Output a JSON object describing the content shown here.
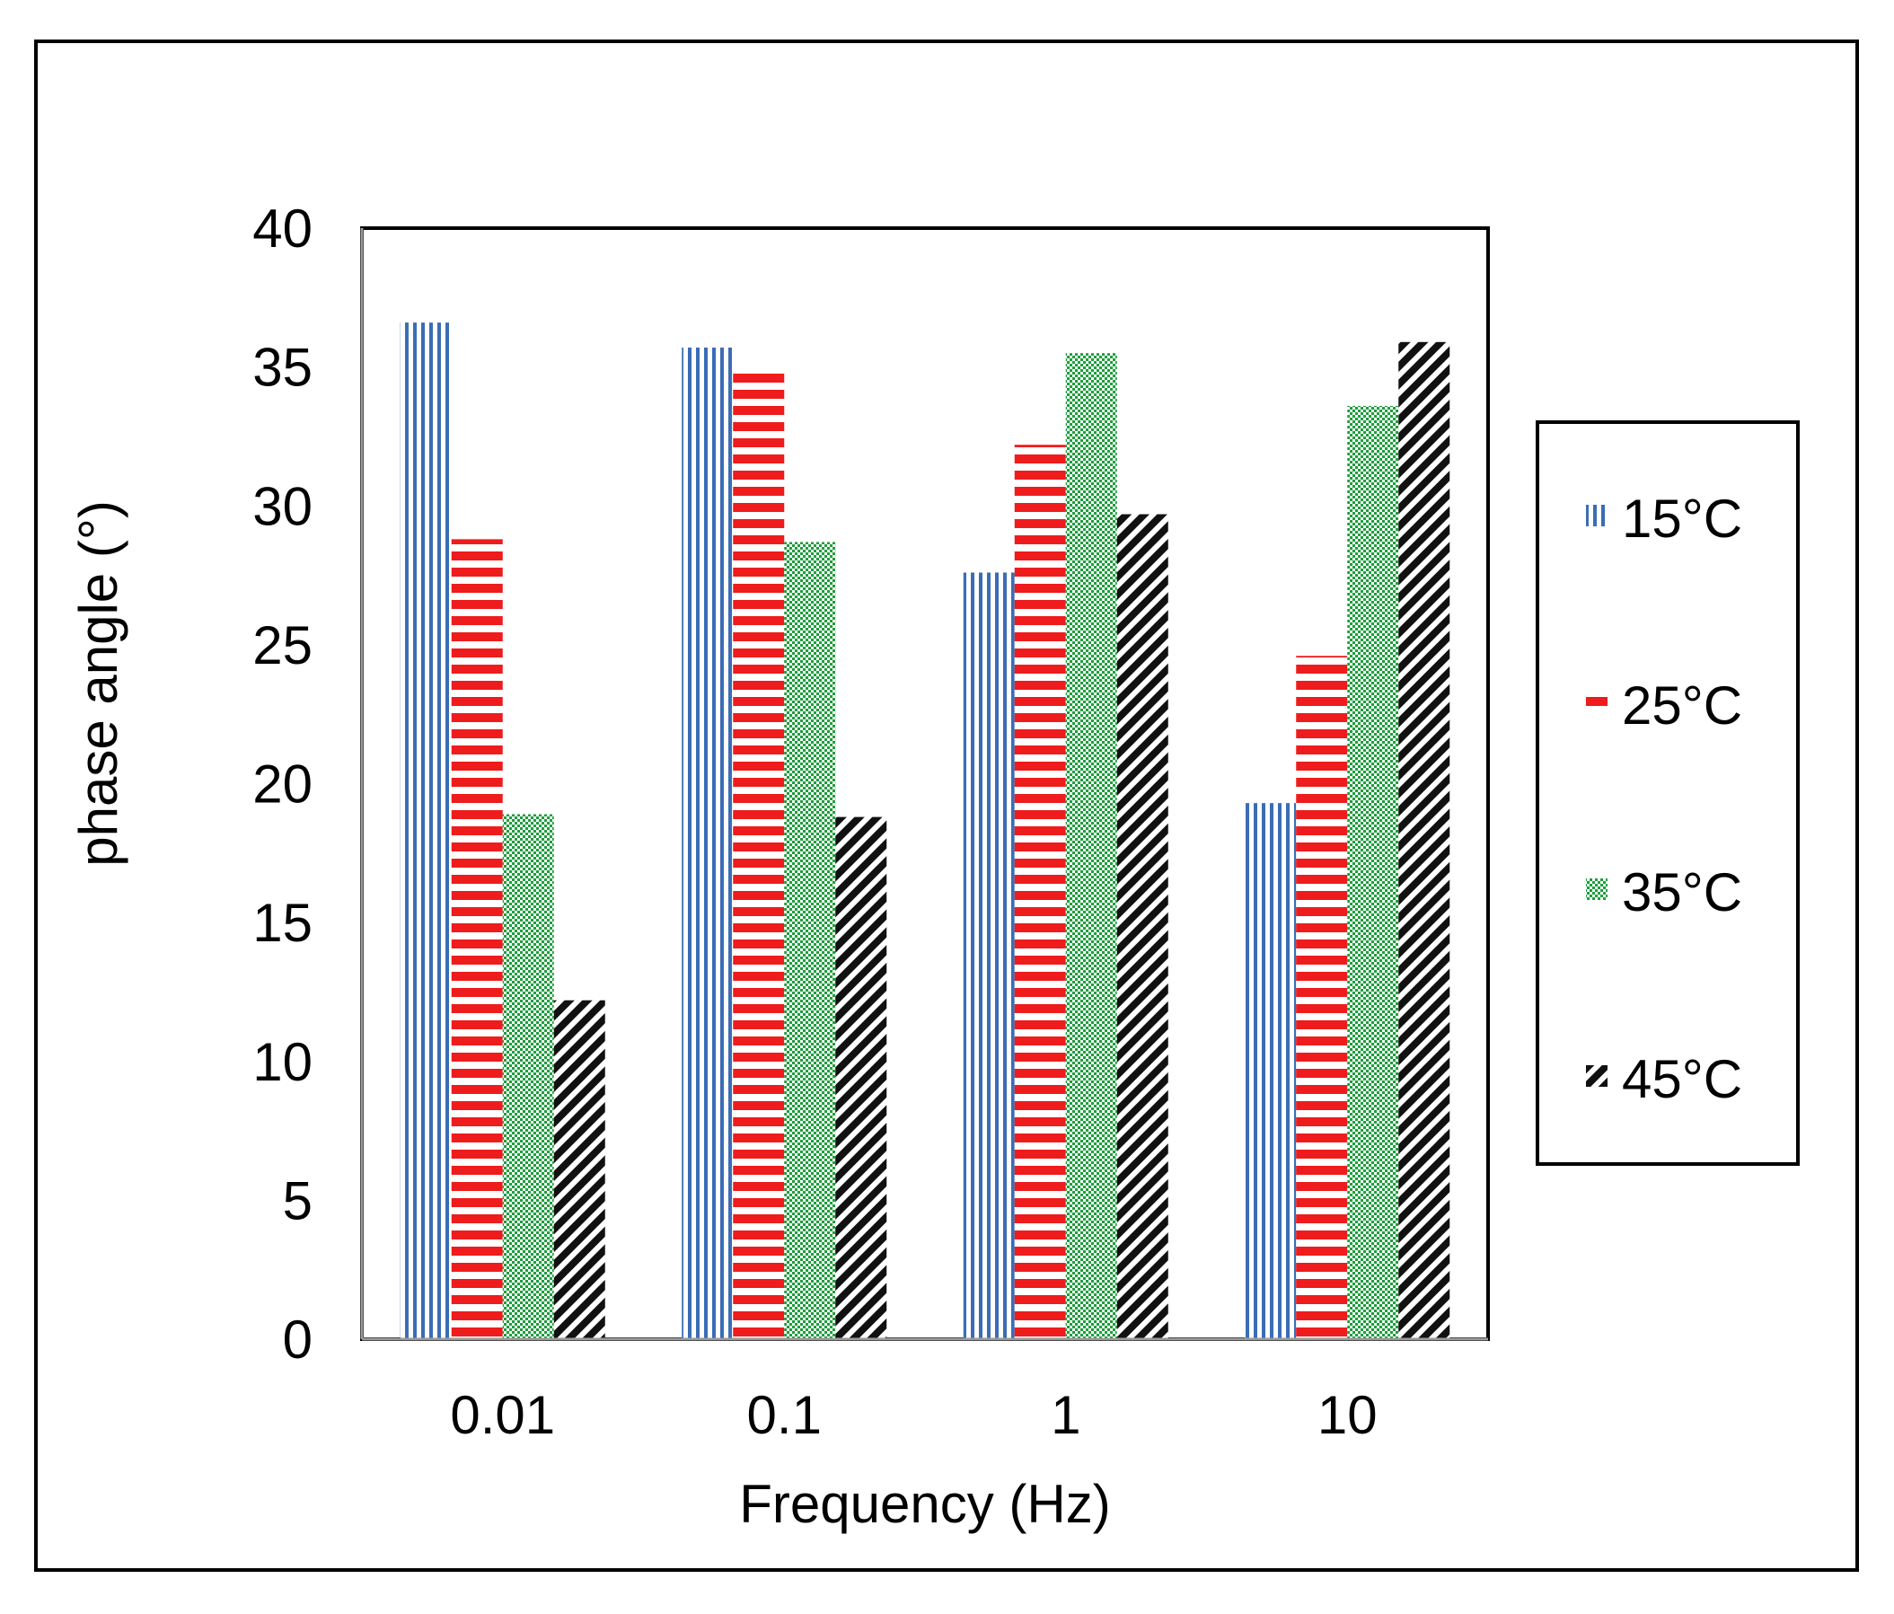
{
  "chart_data": {
    "type": "bar",
    "title": "",
    "xlabel": "Frequency (Hz)",
    "ylabel": "phase angle (°)",
    "categories": [
      "0.01",
      "0.1",
      "1",
      "10"
    ],
    "ylim": [
      0,
      40
    ],
    "yticks": [
      0,
      5,
      10,
      15,
      20,
      25,
      30,
      35,
      40
    ],
    "grid": false,
    "legend_position": "right",
    "series": [
      {
        "name": "15°C",
        "pattern": "vertical-lines",
        "color": "#3b6db5",
        "values": [
          36.6,
          35.7,
          27.6,
          19.3
        ]
      },
      {
        "name": "25°C",
        "pattern": "horizontal-lines",
        "color": "#ee1c1c",
        "values": [
          28.8,
          34.9,
          32.2,
          24.6
        ]
      },
      {
        "name": "35°C",
        "pattern": "dots",
        "color": "#1e9e3c",
        "values": [
          18.9,
          28.7,
          35.5,
          33.6
        ]
      },
      {
        "name": "45°C",
        "pattern": "diagonal-lines",
        "color": "#111111",
        "values": [
          12.2,
          18.8,
          29.7,
          35.9
        ]
      }
    ]
  }
}
